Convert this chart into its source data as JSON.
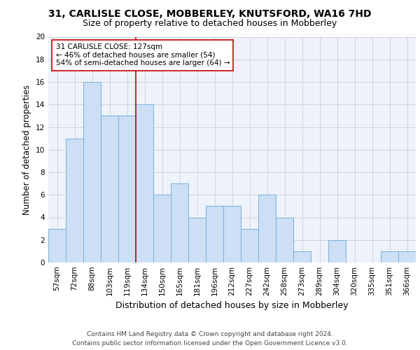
{
  "title": "31, CARLISLE CLOSE, MOBBERLEY, KNUTSFORD, WA16 7HD",
  "subtitle": "Size of property relative to detached houses in Mobberley",
  "xlabel": "Distribution of detached houses by size in Mobberley",
  "ylabel": "Number of detached properties",
  "categories": [
    "57sqm",
    "72sqm",
    "88sqm",
    "103sqm",
    "119sqm",
    "134sqm",
    "150sqm",
    "165sqm",
    "181sqm",
    "196sqm",
    "212sqm",
    "227sqm",
    "242sqm",
    "258sqm",
    "273sqm",
    "289sqm",
    "304sqm",
    "320sqm",
    "335sqm",
    "351sqm",
    "366sqm"
  ],
  "values": [
    3,
    11,
    16,
    13,
    13,
    14,
    6,
    7,
    4,
    5,
    5,
    3,
    6,
    4,
    1,
    0,
    2,
    0,
    0,
    1,
    1
  ],
  "bar_color": "#ccdff5",
  "bar_edge_color": "#7ab0d8",
  "vline_x": 4.5,
  "vline_color": "#cc0000",
  "annotation_text": "31 CARLISLE CLOSE: 127sqm\n← 46% of detached houses are smaller (54)\n54% of semi-detached houses are larger (64) →",
  "annotation_box_color": "white",
  "annotation_box_edge": "#cc0000",
  "ylim": [
    0,
    20
  ],
  "yticks": [
    0,
    2,
    4,
    6,
    8,
    10,
    12,
    14,
    16,
    18,
    20
  ],
  "grid_color": "#cccccc",
  "background_color": "#eef2fb",
  "footer": "Contains HM Land Registry data © Crown copyright and database right 2024.\nContains public sector information licensed under the Open Government Licence v3.0.",
  "title_fontsize": 10,
  "subtitle_fontsize": 9,
  "xlabel_fontsize": 9,
  "ylabel_fontsize": 8.5,
  "tick_fontsize": 7.5,
  "footer_fontsize": 6.5,
  "ann_fontsize": 7.5
}
